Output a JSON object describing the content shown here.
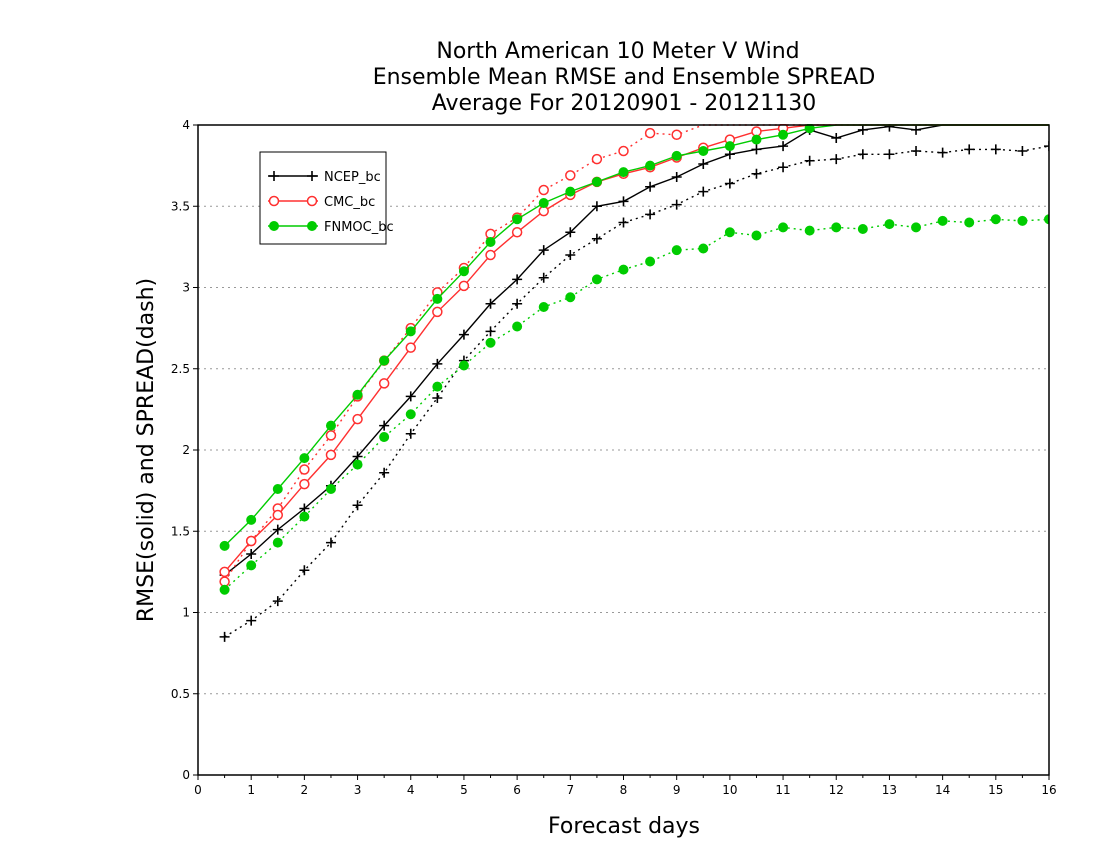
{
  "chart_data": {
    "type": "line",
    "title_lines": [
      "North American 10 Meter V Wind",
      "Ensemble Mean RMSE and Ensemble SPREAD",
      "Average For 20120901 - 20121130"
    ],
    "xlabel": "Forecast days",
    "ylabel": "RMSE(solid) and SPREAD(dash)",
    "xlim": [
      0,
      16
    ],
    "ylim": [
      0,
      4
    ],
    "xticks": [
      "0",
      "1",
      "2",
      "3",
      "4",
      "5",
      "6",
      "7",
      "8",
      "9",
      "10",
      "11",
      "12",
      "13",
      "14",
      "15",
      "16"
    ],
    "yticks": [
      "0",
      "0.5",
      "1",
      "1.5",
      "2",
      "2.5",
      "3",
      "3.5",
      "4"
    ],
    "grid": "horizontal dotted",
    "legend_position": "top-left",
    "x": [
      0.5,
      1,
      1.5,
      2,
      2.5,
      3,
      3.5,
      4,
      4.5,
      5,
      5.5,
      6,
      6.5,
      7,
      7.5,
      8,
      8.5,
      9,
      9.5,
      10,
      10.5,
      11,
      11.5,
      12,
      12.5,
      13,
      13.5,
      14,
      14.5,
      15,
      15.5,
      16
    ],
    "series": [
      {
        "name": "NCEP_bc",
        "color": "#000000",
        "marker": "plus",
        "rmse": [
          1.23,
          1.36,
          1.51,
          1.64,
          1.78,
          1.96,
          2.15,
          2.33,
          2.53,
          2.71,
          2.9,
          3.05,
          3.23,
          3.34,
          3.5,
          3.53,
          3.62,
          3.68,
          3.76,
          3.82,
          3.85,
          3.87,
          3.97,
          3.92,
          3.97,
          3.99,
          3.97,
          4.0,
          4.0,
          4.0,
          4.0,
          4.0
        ],
        "spread": [
          0.85,
          0.95,
          1.07,
          1.26,
          1.43,
          1.66,
          1.86,
          2.1,
          2.32,
          2.55,
          2.73,
          2.9,
          3.06,
          3.2,
          3.3,
          3.4,
          3.45,
          3.51,
          3.59,
          3.64,
          3.7,
          3.74,
          3.78,
          3.79,
          3.82,
          3.82,
          3.84,
          3.83,
          3.85,
          3.85,
          3.84,
          3.87
        ]
      },
      {
        "name": "CMC_bc",
        "color": "#ff3030",
        "marker": "open-circle",
        "rmse": [
          1.25,
          1.44,
          1.6,
          1.79,
          1.97,
          2.19,
          2.41,
          2.63,
          2.85,
          3.01,
          3.2,
          3.34,
          3.47,
          3.57,
          3.65,
          3.7,
          3.74,
          3.8,
          3.86,
          3.91,
          3.96,
          3.98,
          4.0,
          4.0,
          4.0,
          4.0,
          4.0,
          4.0,
          4.0,
          4.0,
          4.0,
          4.0
        ],
        "spread": [
          1.19,
          1.44,
          1.64,
          1.88,
          2.09,
          2.33,
          2.55,
          2.75,
          2.97,
          3.12,
          3.33,
          3.43,
          3.6,
          3.69,
          3.79,
          3.84,
          3.95,
          3.94,
          4.0,
          4.0,
          4.0,
          4.0,
          4.0,
          4.0,
          4.0,
          4.0,
          4.0,
          4.0,
          4.0,
          4.0,
          4.0,
          4.0
        ]
      },
      {
        "name": "FNMOC_bc",
        "color": "#00cc00",
        "marker": "filled-circle",
        "rmse": [
          1.41,
          1.57,
          1.76,
          1.95,
          2.15,
          2.34,
          2.55,
          2.73,
          2.93,
          3.1,
          3.28,
          3.42,
          3.52,
          3.59,
          3.65,
          3.71,
          3.75,
          3.81,
          3.84,
          3.87,
          3.91,
          3.94,
          3.98,
          4.0,
          4.0,
          4.0,
          4.0,
          4.0,
          4.0,
          4.0,
          4.0,
          4.0
        ],
        "spread": [
          1.14,
          1.29,
          1.43,
          1.59,
          1.76,
          1.91,
          2.08,
          2.22,
          2.39,
          2.52,
          2.66,
          2.76,
          2.88,
          2.94,
          3.05,
          3.11,
          3.16,
          3.23,
          3.24,
          3.34,
          3.32,
          3.37,
          3.35,
          3.37,
          3.36,
          3.39,
          3.37,
          3.41,
          3.4,
          3.42,
          3.41,
          3.42
        ]
      }
    ]
  }
}
